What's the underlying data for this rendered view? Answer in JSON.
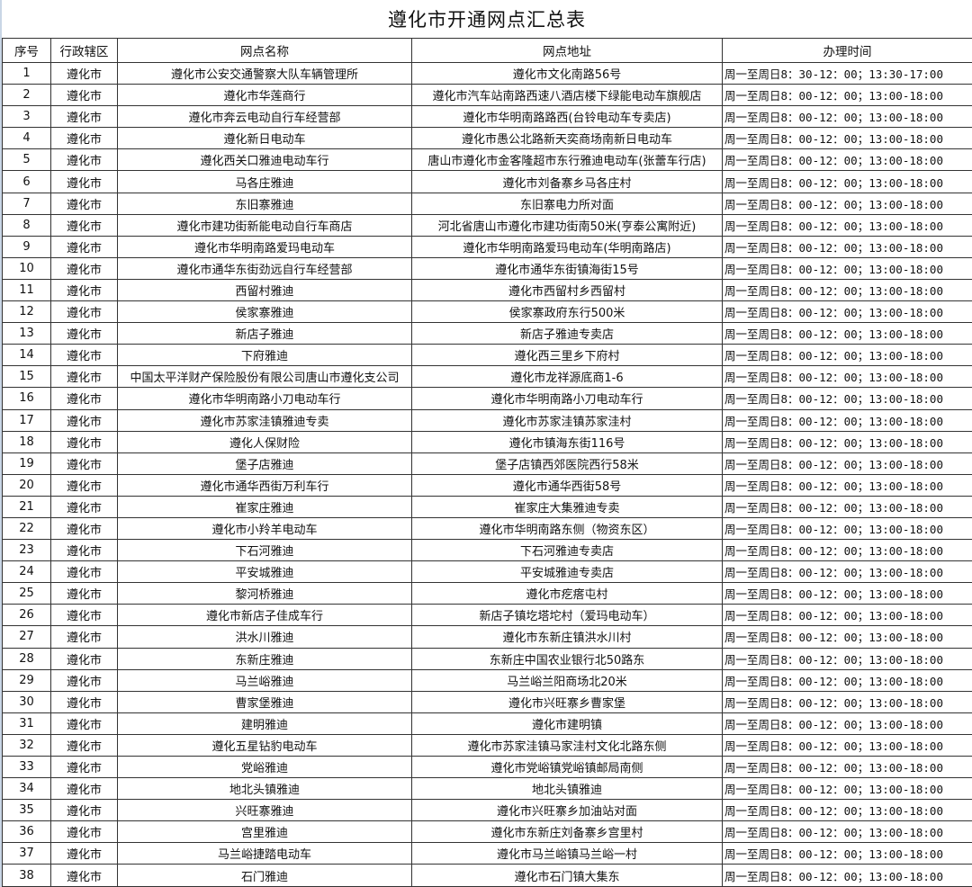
{
  "title": "遵化市开通网点汇总表",
  "headers": [
    "序号",
    "行政辖区",
    "网点名称",
    "网点地址",
    "办理时间"
  ],
  "rows": [
    [
      "1",
      "遵化市",
      "遵化市公安交通警察大队车辆管理所",
      "遵化市文化南路56号",
      "周一至周日8：30-12：00；13:30-17:00"
    ],
    [
      "2",
      "遵化市",
      "遵化市华莲商行",
      "遵化市汽车站南路西速八酒店楼下绿能电动车旗舰店",
      "周一至周日8：00-12：00；13:00-18:00"
    ],
    [
      "3",
      "遵化市",
      "遵化市奔云电动自行车经营部",
      "遵化市华明南路路西(台铃电动车专卖店)",
      "周一至周日8：00-12：00；13:00-18:00"
    ],
    [
      "4",
      "遵化市",
      "遵化新日电动车",
      "遵化市愚公北路新天奕商场南新日电动车",
      "周一至周日8：00-12：00；13:00-18:00"
    ],
    [
      "5",
      "遵化市",
      "遵化西关口雅迪电动车行",
      "唐山市遵化市金客隆超市东行雅迪电动车(张蕾车行店)",
      "周一至周日8：00-12：00；13:00-18:00"
    ],
    [
      "6",
      "遵化市",
      "马各庄雅迪",
      "遵化市刘备寨乡马各庄村",
      "周一至周日8：00-12：00；13:00-18:00"
    ],
    [
      "7",
      "遵化市",
      "东旧寨雅迪",
      "东旧寨电力所对面",
      "周一至周日8：00-12：00；13:00-18:00"
    ],
    [
      "8",
      "遵化市",
      "遵化市建功街新能电动自行车商店",
      "河北省唐山市遵化市建功街南50米(亨泰公寓附近)",
      "周一至周日8：00-12：00；13:00-18:00"
    ],
    [
      "9",
      "遵化市",
      "遵化市华明南路爱玛电动车",
      "遵化市华明南路爱玛电动车(华明南路店)",
      "周一至周日8：00-12：00；13:00-18:00"
    ],
    [
      "10",
      "遵化市",
      "遵化市通华东街劲远自行车经营部",
      "遵化市通华东街镇海街15号",
      "周一至周日8：00-12：00；13:00-18:00"
    ],
    [
      "11",
      "遵化市",
      "西留村雅迪",
      "遵化市西留村乡西留村",
      "周一至周日8：00-12：00；13:00-18:00"
    ],
    [
      "12",
      "遵化市",
      "侯家寨雅迪",
      "侯家寨政府东行500米",
      "周一至周日8：00-12：00；13:00-18:00"
    ],
    [
      "13",
      "遵化市",
      "新店子雅迪",
      "新店子雅迪专卖店",
      "周一至周日8：00-12：00；13:00-18:00"
    ],
    [
      "14",
      "遵化市",
      "下府雅迪",
      "遵化西三里乡下府村",
      "周一至周日8：00-12：00；13:00-18:00"
    ],
    [
      "15",
      "遵化市",
      "中国太平洋财产保险股份有限公司唐山市遵化支公司",
      "遵化市龙祥源底商1-6",
      "周一至周日8：00-12：00；13:00-18:00"
    ],
    [
      "16",
      "遵化市",
      "遵化市华明南路小刀电动车行",
      "遵化市华明南路小刀电动车行",
      "周一至周日8：00-12：00；13:00-18:00"
    ],
    [
      "17",
      "遵化市",
      "遵化市苏家洼镇雅迪专卖",
      "遵化市苏家洼镇苏家洼村",
      "周一至周日8：00-12：00；13:00-18:00"
    ],
    [
      "18",
      "遵化市",
      "遵化人保财险",
      "遵化市镇海东街116号",
      "周一至周日8：00-12：00；13:00-18:00"
    ],
    [
      "19",
      "遵化市",
      "堡子店雅迪",
      "堡子店镇西郊医院西行58米",
      "周一至周日8：00-12：00；13:00-18:00"
    ],
    [
      "20",
      "遵化市",
      "遵化市通华西街万利车行",
      "遵化市通华西街58号",
      "周一至周日8：00-12：00；13:00-18:00"
    ],
    [
      "21",
      "遵化市",
      "崔家庄雅迪",
      "崔家庄大集雅迪专卖",
      "周一至周日8：00-12：00；13:00-18:00"
    ],
    [
      "22",
      "遵化市",
      "遵化市小羚羊电动车",
      "遵化市华明南路东侧（物资东区）",
      "周一至周日8：00-12：00；13:00-18:00"
    ],
    [
      "23",
      "遵化市",
      "下石河雅迪",
      "下石河雅迪专卖店",
      "周一至周日8：00-12：00；13:00-18:00"
    ],
    [
      "24",
      "遵化市",
      "平安城雅迪",
      "平安城雅迪专卖店",
      "周一至周日8：00-12：00；13:00-18:00"
    ],
    [
      "25",
      "遵化市",
      "黎河桥雅迪",
      "遵化市疙瘩屯村",
      "周一至周日8：00-12：00；13:00-18:00"
    ],
    [
      "26",
      "遵化市",
      "遵化市新店子佳成车行",
      "新店子镇圪塔坨村（爱玛电动车）",
      "周一至周日8：00-12：00；13:00-18:00"
    ],
    [
      "27",
      "遵化市",
      "洪水川雅迪",
      "遵化市东新庄镇洪水川村",
      "周一至周日8：00-12：00；13:00-18:00"
    ],
    [
      "28",
      "遵化市",
      "东新庄雅迪",
      "东新庄中国农业银行北50路东",
      "周一至周日8：00-12：00；13:00-18:00"
    ],
    [
      "29",
      "遵化市",
      "马兰峪雅迪",
      "马兰峪兰阳商场北20米",
      "周一至周日8：00-12：00；13:00-18:00"
    ],
    [
      "30",
      "遵化市",
      "曹家堡雅迪",
      "遵化市兴旺寨乡曹家堡",
      "周一至周日8：00-12：00；13:00-18:00"
    ],
    [
      "31",
      "遵化市",
      "建明雅迪",
      "遵化市建明镇",
      "周一至周日8：00-12：00；13:00-18:00"
    ],
    [
      "32",
      "遵化市",
      "遵化五星钻豹电动车",
      "遵化市苏家洼镇马家洼村文化北路东侧",
      "周一至周日8：00-12：00；13:00-18:00"
    ],
    [
      "33",
      "遵化市",
      "党峪雅迪",
      "遵化市党峪镇党峪镇邮局南侧",
      "周一至周日8：00-12：00；13:00-18:00"
    ],
    [
      "34",
      "遵化市",
      "地北头镇雅迪",
      "地北头镇雅迪",
      "周一至周日8：00-12：00；13:00-18:00"
    ],
    [
      "35",
      "遵化市",
      "兴旺寨雅迪",
      "遵化市兴旺寨乡加油站对面",
      "周一至周日8：00-12：00；13:00-18:00"
    ],
    [
      "36",
      "遵化市",
      "宫里雅迪",
      "遵化市东新庄刘备寨乡宫里村",
      "周一至周日8：00-12：00；13:00-18:00"
    ],
    [
      "37",
      "遵化市",
      "马兰峪捷踏电动车",
      "遵化市马兰峪镇马兰峪一村",
      "周一至周日8：00-12：00；13:00-18:00"
    ],
    [
      "38",
      "遵化市",
      "石门雅迪",
      "遵化市石门镇大集东",
      "周一至周日8：00-12：00；13:00-18:00"
    ]
  ]
}
